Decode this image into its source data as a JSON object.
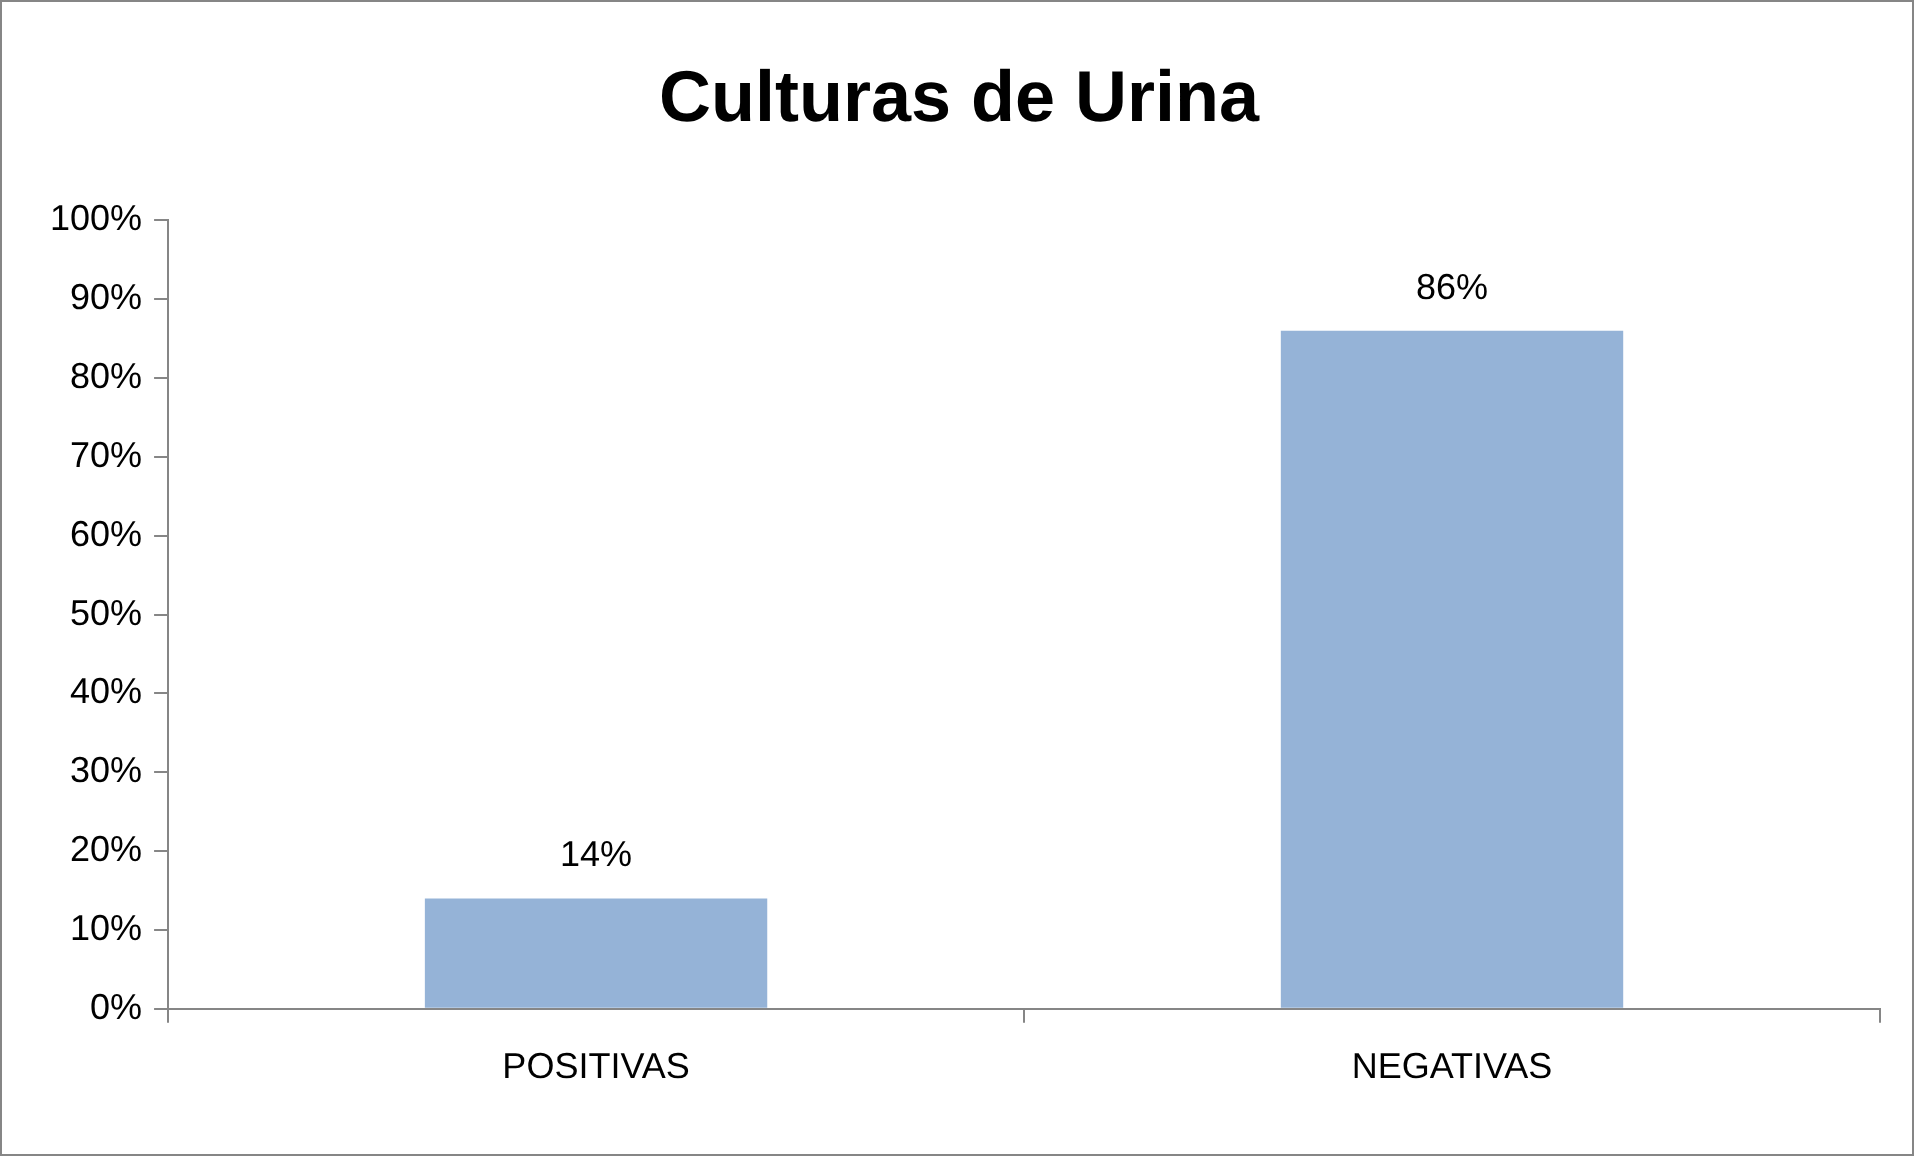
{
  "chart_data": {
    "type": "bar",
    "title": "Culturas de Urina",
    "categories": [
      "POSITIVAS",
      "NEGATIVAS"
    ],
    "values": [
      14,
      86
    ],
    "color": "#95b3d7",
    "value_labels": [
      "14%",
      "86%"
    ],
    "ylim": [
      0,
      100
    ],
    "yticks": [
      {
        "value": 0,
        "label": "0%"
      },
      {
        "value": 10,
        "label": "10%"
      },
      {
        "value": 20,
        "label": "20%"
      },
      {
        "value": 30,
        "label": "30%"
      },
      {
        "value": 40,
        "label": "40%"
      },
      {
        "value": 50,
        "label": "50%"
      },
      {
        "value": 60,
        "label": "60%"
      },
      {
        "value": 70,
        "label": "70%"
      },
      {
        "value": 80,
        "label": "80%"
      },
      {
        "value": 90,
        "label": "90%"
      },
      {
        "value": 100,
        "label": "100%"
      }
    ],
    "grid": false,
    "legend": false
  }
}
